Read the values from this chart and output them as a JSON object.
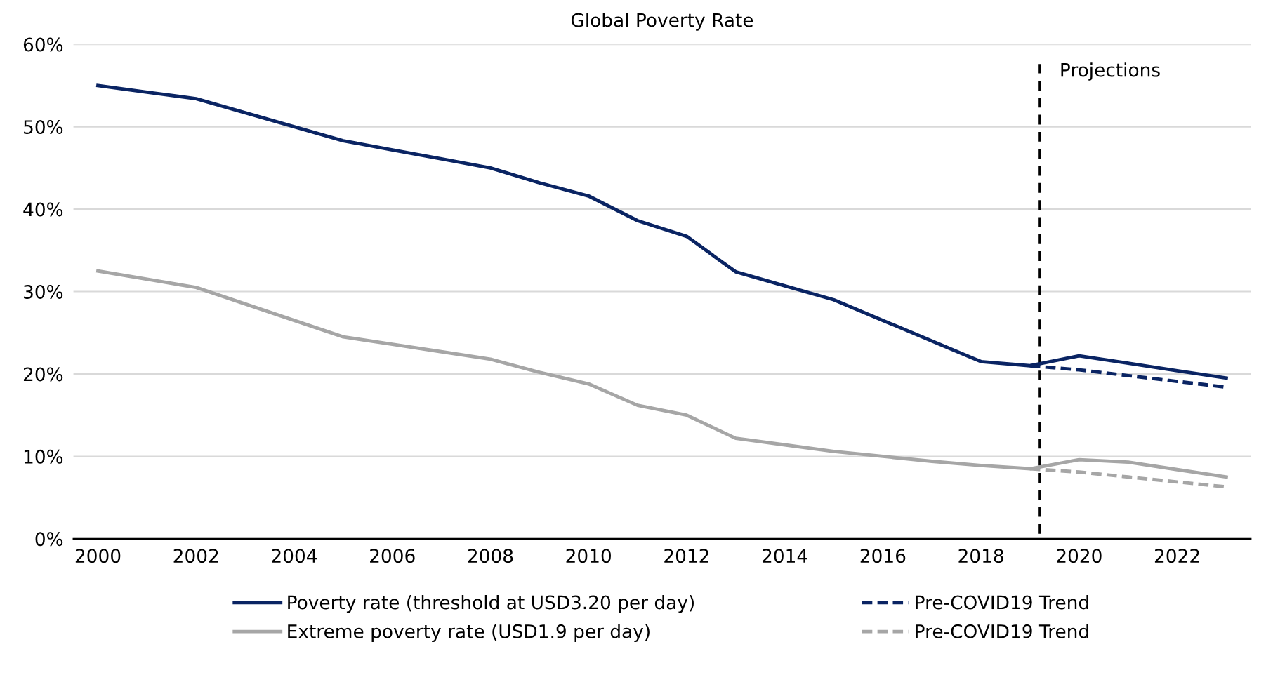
{
  "chart_data": {
    "type": "line",
    "title": "Global Poverty Rate",
    "xlim": [
      1999.5,
      2023.5
    ],
    "xticks": [
      2000,
      2002,
      2004,
      2006,
      2008,
      2010,
      2012,
      2014,
      2016,
      2018,
      2020,
      2022
    ],
    "ylim": [
      0,
      60
    ],
    "yticks": [
      {
        "value": 0,
        "label": "0%"
      },
      {
        "value": 10,
        "label": "10%"
      },
      {
        "value": 20,
        "label": "20%"
      },
      {
        "value": 30,
        "label": "30%"
      },
      {
        "value": 40,
        "label": "40%"
      },
      {
        "value": 50,
        "label": "50%"
      },
      {
        "value": 60,
        "label": "60%"
      }
    ],
    "grid": "y",
    "legend": "bottom",
    "marker": "none",
    "series": [
      {
        "name": "Poverty rate (threshold at USD3.20 per day)",
        "color": "#0a2463",
        "line_style": "solid",
        "x": [
          2000,
          2001,
          2002,
          2003,
          2004,
          2005,
          2006,
          2007,
          2008,
          2009,
          2010,
          2011,
          2012,
          2013,
          2014,
          2015,
          2016,
          2017,
          2018,
          2019,
          2020,
          2021,
          2022,
          2023
        ],
        "values": [
          55,
          54.2,
          53.4,
          51.7,
          50,
          48.3,
          47.2,
          46.1,
          45,
          43.2,
          41.6,
          38.6,
          36.7,
          32.4,
          30.7,
          29,
          26.5,
          24,
          21.5,
          21,
          22.2,
          21.3,
          20.4,
          19.5
        ]
      },
      {
        "name": "Extreme poverty rate (USD1.9 per day)",
        "color": "#a6a6a6",
        "line_style": "solid",
        "x": [
          2000,
          2001,
          2002,
          2003,
          2004,
          2005,
          2006,
          2007,
          2008,
          2009,
          2010,
          2011,
          2012,
          2013,
          2014,
          2015,
          2016,
          2017,
          2018,
          2019,
          2020,
          2021,
          2022,
          2023
        ],
        "values": [
          32.5,
          31.5,
          30.5,
          28.5,
          26.5,
          24.5,
          23.6,
          22.7,
          21.8,
          20.2,
          18.8,
          16.2,
          15,
          12.2,
          11.4,
          10.6,
          10,
          9.4,
          8.9,
          8.5,
          9.6,
          9.3,
          8.4,
          7.5
        ]
      },
      {
        "name": "Pre-COVID19 Trend",
        "color": "#0a2463",
        "line_style": "dashed",
        "x": [
          2019,
          2020,
          2021,
          2022,
          2023
        ],
        "values": [
          21,
          20.5,
          19.8,
          19.1,
          18.4
        ]
      },
      {
        "name": "Pre-COVID19 Trend",
        "color": "#a6a6a6",
        "line_style": "dashed",
        "x": [
          2019,
          2020,
          2021,
          2022,
          2023
        ],
        "values": [
          8.5,
          8.1,
          7.5,
          6.9,
          6.3
        ]
      }
    ],
    "ref_lines": [
      {
        "axis": "x",
        "value": 2019.2,
        "label": "Projections",
        "color": "#000000",
        "line_style": "dashed"
      }
    ]
  }
}
